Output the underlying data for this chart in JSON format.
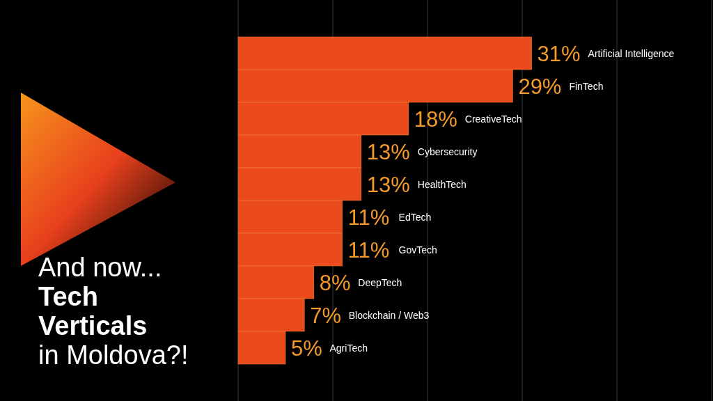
{
  "chart_data": {
    "type": "bar",
    "orientation": "horizontal",
    "title": "And now...\nTech\nVerticals\nin Moldova?!",
    "categories": [
      "Artificial Intelligence",
      "FinTech",
      "CreativeTech",
      "Cybersecurity",
      "HealthTech",
      "EdTech",
      "GovTech",
      "DeepTech",
      "Blockchain / Web3",
      "AgriTech"
    ],
    "values": [
      31,
      29,
      18,
      13,
      13,
      11,
      11,
      8,
      7,
      5
    ],
    "value_labels": [
      "31%",
      "29%",
      "18%",
      "13%",
      "13%",
      "11%",
      "11%",
      "8%",
      "7%",
      "5%"
    ],
    "color": "#ea4a1c",
    "xlim": [
      0,
      50
    ],
    "xticks": [
      {
        "value": 0,
        "label": null
      },
      {
        "value": 10,
        "label": null
      },
      {
        "value": 20,
        "label": null
      },
      {
        "value": 30,
        "label": null
      },
      {
        "value": 40,
        "label": null
      },
      {
        "value": 50,
        "label": null
      }
    ],
    "grid": "x"
  }
}
